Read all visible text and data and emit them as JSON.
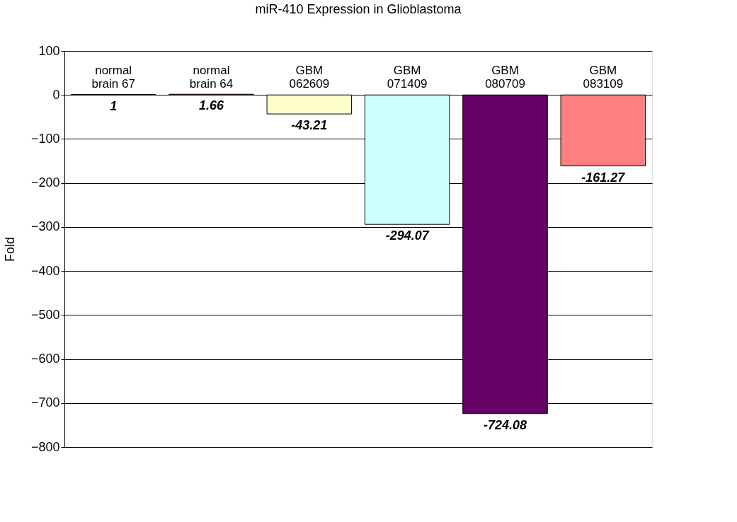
{
  "chart_data": {
    "type": "bar",
    "title": "miR-410 Expression in Glioblastoma",
    "ylabel": "Fold",
    "categories": [
      "normal\nbrain 67",
      "normal\nbrain 64",
      "GBM\n062609",
      "GBM\n071409",
      "GBM\n080709",
      "GBM\n083109"
    ],
    "values": [
      1,
      1.66,
      -43.21,
      -294.07,
      -724.08,
      -161.27
    ],
    "colors": [
      "#9999ff",
      "#993366",
      "#ffffcc",
      "#ccffff",
      "#660066",
      "#ff8080"
    ],
    "ylim": [
      -800,
      100
    ],
    "yticks": [
      -800,
      -700,
      -600,
      -500,
      -400,
      -300,
      -200,
      -100,
      0,
      100
    ],
    "grid": "y",
    "legend": false,
    "data_labels": true
  }
}
